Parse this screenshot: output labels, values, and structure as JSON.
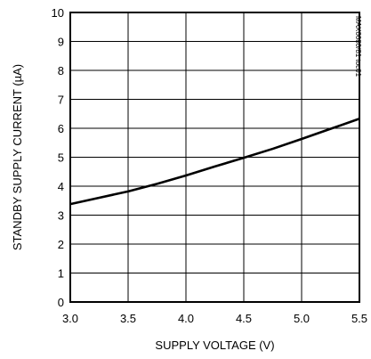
{
  "chart_data": {
    "type": "line",
    "xlabel": "SUPPLY VOLTAGE (V)",
    "ylabel": "STANDBY SUPPLY CURRENT (µA)",
    "xlim": [
      3.0,
      5.5
    ],
    "ylim": [
      0,
      10
    ],
    "x_ticks": [
      "3.0",
      "3.5",
      "4.0",
      "4.5",
      "5.0",
      "5.5"
    ],
    "y_ticks": [
      "0",
      "1",
      "2",
      "3",
      "4",
      "5",
      "6",
      "7",
      "8",
      "9",
      "10"
    ],
    "grid": true,
    "series": [
      {
        "x": [
          3.0,
          3.25,
          3.5,
          3.75,
          4.0,
          4.25,
          4.5,
          4.75,
          5.0,
          5.25,
          5.5
        ],
        "y": [
          3.38,
          3.6,
          3.82,
          4.08,
          4.37,
          4.68,
          4.98,
          5.29,
          5.63,
          5.98,
          6.33
        ]
      }
    ],
    "annotations": [
      "MAX6680/81 toc01"
    ]
  }
}
